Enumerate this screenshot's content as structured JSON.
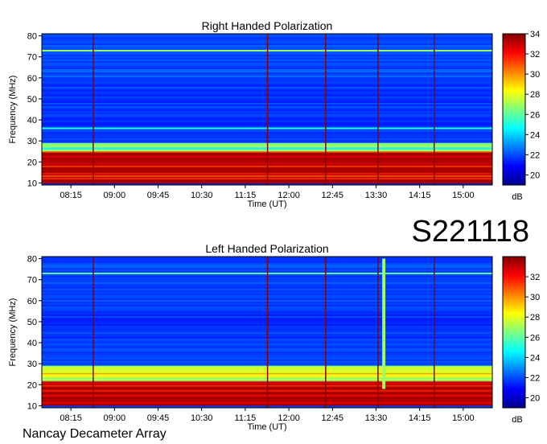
{
  "footer_text": "Nancay Decameter Array",
  "date_label": "S221118",
  "chart_data": [
    {
      "type": "heatmap",
      "title": "Right Handed Polarization",
      "xlabel": "Time (UT)",
      "ylabel": "Frequency (MHz)",
      "x_ticks": [
        "08:15",
        "09:00",
        "09:45",
        "10:30",
        "11:15",
        "12:00",
        "12:45",
        "13:30",
        "14:15",
        "15:00"
      ],
      "xlim": [
        "07:45",
        "15:30"
      ],
      "y_ticks": [
        10,
        20,
        30,
        40,
        50,
        60,
        70,
        80
      ],
      "ylim": [
        9,
        81
      ],
      "colorbar": {
        "label": "dB",
        "ticks": [
          20,
          22,
          24,
          26,
          28,
          30,
          32,
          34
        ],
        "range": [
          19,
          34
        ]
      },
      "colormap": "jet",
      "features": [
        {
          "freq_range_mhz": [
            10,
            25
          ],
          "level_db": 33,
          "desc": "strong emission band"
        },
        {
          "freq_range_mhz": [
            25,
            29
          ],
          "level_db": 26
        },
        {
          "freq_mhz": 73,
          "level_db": 27,
          "desc": "horizontal interference line"
        },
        {
          "freq_mhz": 36,
          "level_db": 25
        }
      ]
    },
    {
      "type": "heatmap",
      "title": "Left Handed Polarization",
      "xlabel": "Time (UT)",
      "ylabel": "Frequency (MHz)",
      "x_ticks": [
        "08:15",
        "09:00",
        "09:45",
        "10:30",
        "11:15",
        "12:00",
        "12:45",
        "13:30",
        "14:15",
        "15:00"
      ],
      "xlim": [
        "07:45",
        "15:30"
      ],
      "y_ticks": [
        10,
        20,
        30,
        40,
        50,
        60,
        70,
        80
      ],
      "ylim": [
        9,
        81
      ],
      "colorbar": {
        "label": "dB",
        "ticks": [
          20,
          22,
          24,
          26,
          28,
          30,
          32
        ],
        "range": [
          19,
          34
        ]
      },
      "colormap": "jet",
      "features": [
        {
          "freq_range_mhz": [
            10,
            22
          ],
          "level_db": 33,
          "desc": "strong emission band"
        },
        {
          "freq_range_mhz": [
            22,
            29
          ],
          "level_db": 28
        },
        {
          "freq_mhz": 73,
          "level_db": 26,
          "desc": "horizontal interference line"
        },
        {
          "time": "13:38",
          "freq_range_mhz": [
            18,
            80
          ],
          "level_db": 27,
          "desc": "vertical burst"
        }
      ]
    }
  ]
}
